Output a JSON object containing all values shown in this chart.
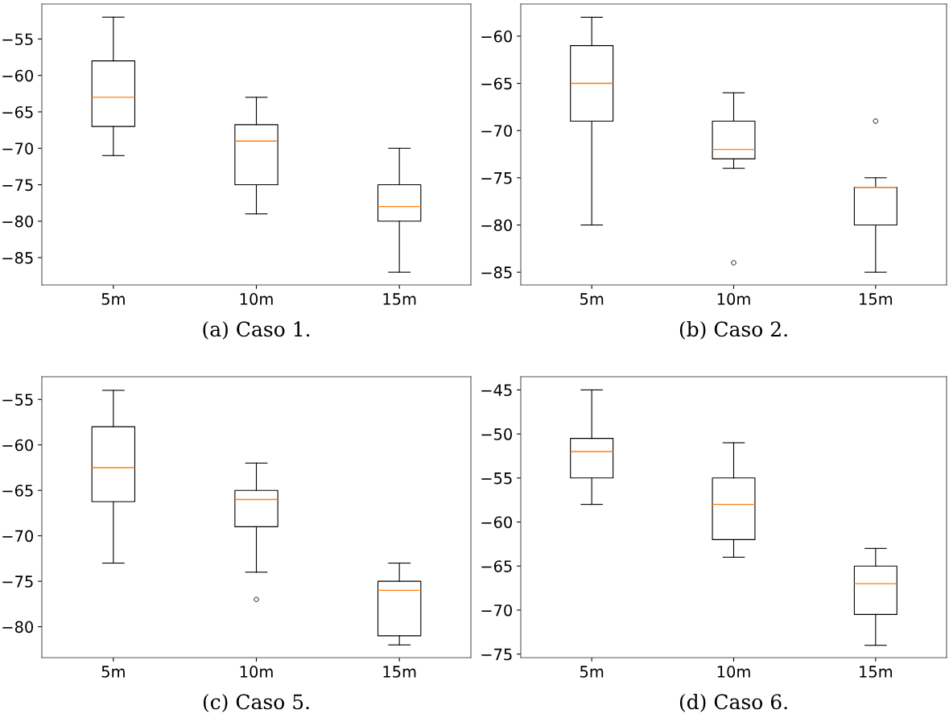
{
  "chart_data": [
    {
      "type": "box",
      "title": "(a) Caso 1.",
      "categories": [
        "5m",
        "10m",
        "15m"
      ],
      "ylim": [
        -88.75,
        -50.2
      ],
      "yticks": [
        {
          "value": -85,
          "label": "−85"
        },
        {
          "value": -80,
          "label": "−80"
        },
        {
          "value": -75,
          "label": "−75"
        },
        {
          "value": -70,
          "label": "−70"
        },
        {
          "value": -65,
          "label": "−65"
        },
        {
          "value": -60,
          "label": "−60"
        },
        {
          "value": -55,
          "label": "−55"
        }
      ],
      "grid": false,
      "series": [
        {
          "color": "#000000",
          "boxes": [
            {
              "low": -71,
              "q1": -67,
              "median": -63,
              "q3": -58,
              "high": -52
            },
            {
              "low": -79,
              "q1": -75,
              "median": -69,
              "q3": -66.75,
              "high": -63
            },
            {
              "low": -87,
              "q1": -80,
              "median": -78,
              "q3": -75,
              "high": -70
            }
          ]
        }
      ]
    },
    {
      "type": "box",
      "title": "(b) Caso 2.",
      "categories": [
        "5m",
        "10m",
        "15m"
      ],
      "ylim": [
        -86.35,
        -56.6
      ],
      "yticks": [
        {
          "value": -85,
          "label": "−85"
        },
        {
          "value": -80,
          "label": "−80"
        },
        {
          "value": -75,
          "label": "−75"
        },
        {
          "value": -70,
          "label": "−70"
        },
        {
          "value": -65,
          "label": "−65"
        },
        {
          "value": -60,
          "label": "−60"
        }
      ],
      "grid": false,
      "series": [
        {
          "color": "#000000",
          "boxes": [
            {
              "low": -80,
              "q1": -69,
              "median": -65,
              "q3": -61,
              "high": -58
            },
            {
              "low": -74,
              "q1": -73,
              "median": -72,
              "q3": -69,
              "high": -66,
              "outliers": [
                -84
              ]
            },
            {
              "low": -85,
              "q1": -80,
              "median": -76,
              "q3": -76,
              "high": -75,
              "outliers": [
                -69
              ]
            }
          ]
        }
      ]
    },
    {
      "type": "box",
      "title": "(c) Caso 5.",
      "categories": [
        "5m",
        "10m",
        "15m"
      ],
      "ylim": [
        -83.4,
        -52.5
      ],
      "yticks": [
        {
          "value": -80,
          "label": "−80"
        },
        {
          "value": -75,
          "label": "−75"
        },
        {
          "value": -70,
          "label": "−70"
        },
        {
          "value": -65,
          "label": "−65"
        },
        {
          "value": -60,
          "label": "−60"
        },
        {
          "value": -55,
          "label": "−55"
        }
      ],
      "grid": false,
      "series": [
        {
          "color": "#000000",
          "boxes": [
            {
              "low": -73,
              "q1": -66.25,
              "median": -62.5,
              "q3": -58,
              "high": -54
            },
            {
              "low": -74,
              "q1": -69,
              "median": -66,
              "q3": -65,
              "high": -62,
              "outliers": [
                -77
              ]
            },
            {
              "low": -82,
              "q1": -81,
              "median": -76,
              "q3": -75,
              "high": -73
            }
          ]
        }
      ]
    },
    {
      "type": "box",
      "title": "(d) Caso 6.",
      "categories": [
        "5m",
        "10m",
        "15m"
      ],
      "ylim": [
        -75.4,
        -43.5
      ],
      "yticks": [
        {
          "value": -75,
          "label": "−75"
        },
        {
          "value": -70,
          "label": "−70"
        },
        {
          "value": -65,
          "label": "−65"
        },
        {
          "value": -60,
          "label": "−60"
        },
        {
          "value": -55,
          "label": "−55"
        },
        {
          "value": -50,
          "label": "−50"
        },
        {
          "value": -45,
          "label": "−45"
        }
      ],
      "grid": false,
      "series": [
        {
          "color": "#000000",
          "boxes": [
            {
              "low": -58,
              "q1": -55,
              "median": -52,
              "q3": -50.5,
              "high": -45
            },
            {
              "low": -64,
              "q1": -62,
              "median": -58,
              "q3": -55,
              "high": -51
            },
            {
              "low": -74,
              "q1": -70.5,
              "median": -67,
              "q3": -65,
              "high": -63
            }
          ]
        }
      ]
    }
  ]
}
